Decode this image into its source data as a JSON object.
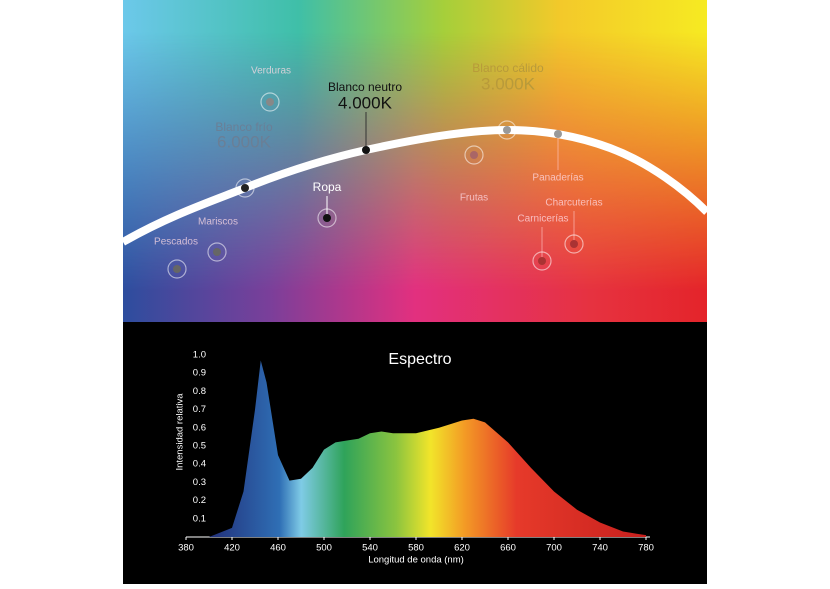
{
  "diagram": {
    "labels": {
      "verduras": "Verduras",
      "blanco_neutro": "Blanco neutro",
      "k4000": "4.000K",
      "blanco_calido": "Blanco cálido",
      "k3000": "3.000K",
      "blanco_frio": "Blanco frío",
      "k6000": "6.000K",
      "ropa": "Ropa",
      "frutas": "Frutas",
      "panaderias": "Panaderías",
      "charcuterias": "Charcuterías",
      "carnicerias": "Carnicerías",
      "mariscos": "Mariscos",
      "pescados": "Pescados"
    }
  },
  "chart_data": {
    "type": "area",
    "title": "Espectro",
    "x_label": "Longitud de onda (nm)",
    "y_label": "Intensidad relativa",
    "x": [
      400,
      420,
      430,
      440,
      445,
      450,
      460,
      470,
      480,
      490,
      500,
      510,
      520,
      530,
      540,
      550,
      560,
      580,
      600,
      620,
      630,
      640,
      660,
      680,
      700,
      720,
      740,
      760,
      780
    ],
    "values": [
      0,
      0.05,
      0.25,
      0.7,
      0.97,
      0.85,
      0.45,
      0.31,
      0.32,
      0.38,
      0.48,
      0.52,
      0.53,
      0.54,
      0.57,
      0.58,
      0.57,
      0.57,
      0.6,
      0.64,
      0.65,
      0.63,
      0.52,
      0.38,
      0.25,
      0.15,
      0.08,
      0.03,
      0.01
    ],
    "xlim": [
      380,
      780
    ],
    "ylim": [
      0,
      1
    ],
    "xticks": [
      380,
      420,
      460,
      500,
      540,
      580,
      620,
      660,
      700,
      740,
      780
    ],
    "yticks": [
      0.1,
      0.2,
      0.3,
      0.4,
      0.5,
      0.6,
      0.7,
      0.8,
      0.9,
      {
        "value": 1,
        "label": "1.0"
      }
    ]
  }
}
